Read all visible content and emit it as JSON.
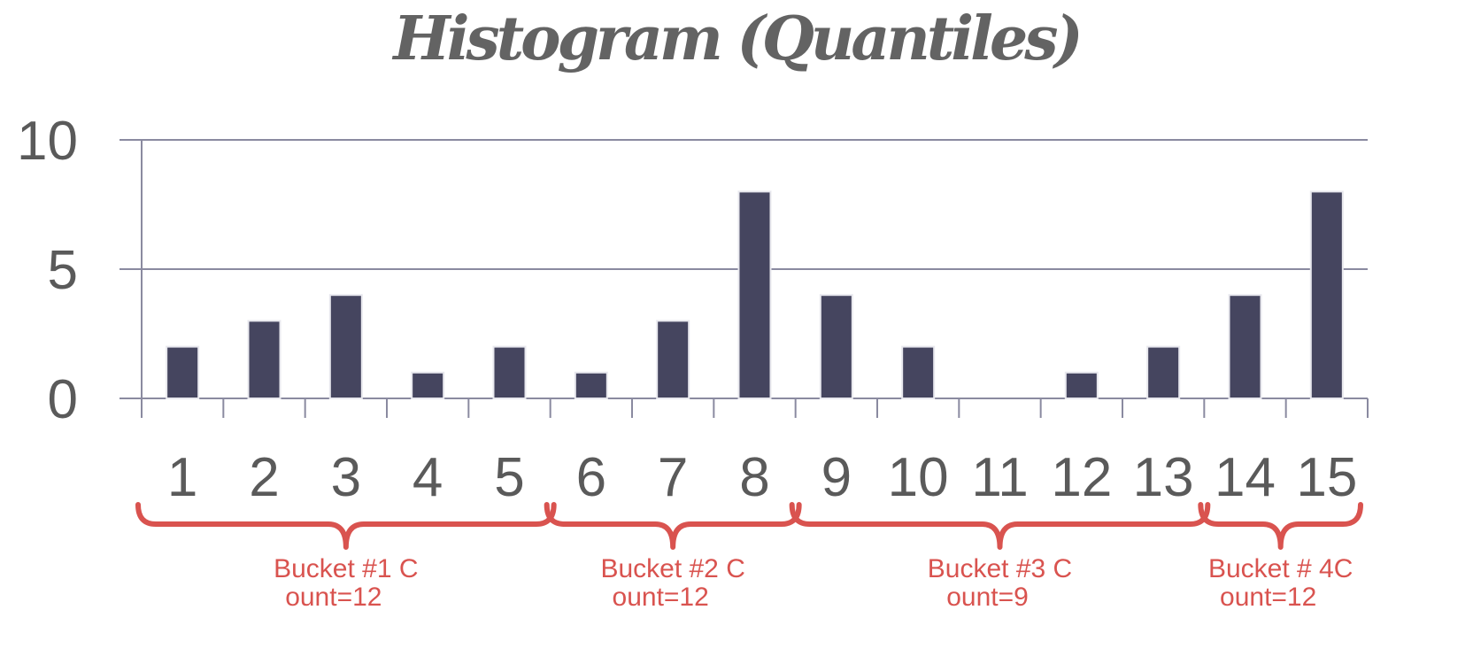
{
  "chart_data": {
    "type": "bar",
    "title": "Histogram (Quantiles)",
    "xlabel": "",
    "ylabel": "",
    "ylim": [
      0,
      10
    ],
    "yticks": [
      "0",
      "5",
      "10"
    ],
    "grid": true,
    "categories": [
      "1",
      "2",
      "3",
      "4",
      "5",
      "6",
      "7",
      "8",
      "9",
      "10",
      "11",
      "12",
      "13",
      "14",
      "15"
    ],
    "values": [
      2,
      3,
      4,
      1,
      2,
      1,
      3,
      8,
      4,
      2,
      0,
      1,
      2,
      4,
      8
    ],
    "annotations": [
      {
        "name": "bucket-1",
        "line1": "Bucket #1 C",
        "line2": "ount=12",
        "start_bar": 1,
        "end_bar": 5
      },
      {
        "name": "bucket-2",
        "line1": "Bucket #2 C",
        "line2": "ount=12",
        "start_bar": 6,
        "end_bar": 8
      },
      {
        "name": "bucket-3",
        "line1": "Bucket #3 C",
        "line2": "ount=9",
        "start_bar": 9,
        "end_bar": 13
      },
      {
        "name": "bucket-4",
        "line1": "Bucket # 4C",
        "line2": "ount=12",
        "start_bar": 14,
        "end_bar": 15
      }
    ],
    "colors": {
      "bar": "#45455f",
      "brace": "#d9534f",
      "text": "#5a5a5a",
      "grid": "#8a8aa0"
    }
  }
}
